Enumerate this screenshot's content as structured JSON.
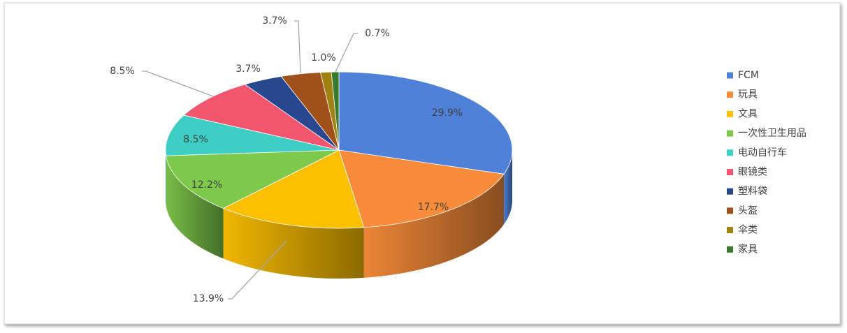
{
  "chart_data": {
    "type": "pie",
    "categories": [
      "FCM",
      "玩具",
      "文具",
      "一次性卫生用品",
      "电动自行车",
      "眼镜类",
      "塑料袋",
      "头盔",
      "伞类",
      "家具"
    ],
    "values": [
      29.9,
      17.7,
      13.9,
      12.2,
      8.5,
      8.5,
      3.7,
      3.7,
      1.0,
      0.7
    ],
    "value_labels": [
      "29.9%",
      "17.7%",
      "13.9%",
      "12.2%",
      "8.5%",
      "8.5%",
      "3.7%",
      "3.7%",
      "1.0%",
      "0.7%"
    ],
    "colors": [
      "#4f81d9",
      "#f88c3a",
      "#fdc000",
      "#7ec84b",
      "#3ecec4",
      "#f2566e",
      "#29478f",
      "#a0501a",
      "#a08010",
      "#3a7a2e"
    ],
    "legend": "right"
  }
}
